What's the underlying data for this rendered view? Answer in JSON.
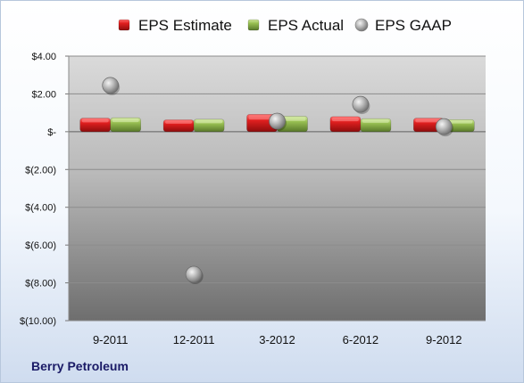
{
  "company": "Berry Petroleum",
  "chart_data": {
    "type": "bar",
    "categories": [
      "9-2011",
      "12-2011",
      "3-2012",
      "6-2012",
      "9-2012"
    ],
    "series": [
      {
        "name": "EPS Estimate",
        "kind": "bar",
        "color": "#cc1f1f",
        "values": [
          0.72,
          0.63,
          0.92,
          0.8,
          0.72
        ]
      },
      {
        "name": "EPS Actual",
        "kind": "bar",
        "color": "#8cb04a",
        "values": [
          0.74,
          0.66,
          0.82,
          0.69,
          0.64
        ]
      },
      {
        "name": "EPS GAAP",
        "kind": "scatter",
        "color": "#a6a6a6",
        "values": [
          2.45,
          -7.55,
          0.56,
          1.45,
          0.27
        ]
      }
    ],
    "y_ticks": [
      {
        "value": 4,
        "label": "$4.00"
      },
      {
        "value": 2,
        "label": "$2.00"
      },
      {
        "value": 0,
        "label": "$-"
      },
      {
        "value": -2,
        "label": "$(2.00)"
      },
      {
        "value": -4,
        "label": "$(4.00)"
      },
      {
        "value": -6,
        "label": "$(6.00)"
      },
      {
        "value": -8,
        "label": "$(8.00)"
      },
      {
        "value": -10,
        "label": "$(10.00)"
      }
    ],
    "ylim": [
      -10,
      4
    ],
    "legend_position": "top",
    "grid": true
  }
}
